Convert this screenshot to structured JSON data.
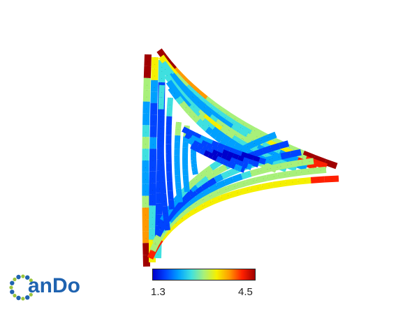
{
  "colorbar": {
    "min_label": "1.3",
    "max_label": "4.5",
    "colors": [
      "#0000cc",
      "#0044ff",
      "#00a0ff",
      "#3fe0e0",
      "#a8f07a",
      "#f5f000",
      "#ff9a00",
      "#ff2000",
      "#a00000"
    ]
  },
  "logo": {
    "text": "anDo",
    "ring_color": "#1f63b0",
    "dot_color": "#9ac43c"
  }
}
